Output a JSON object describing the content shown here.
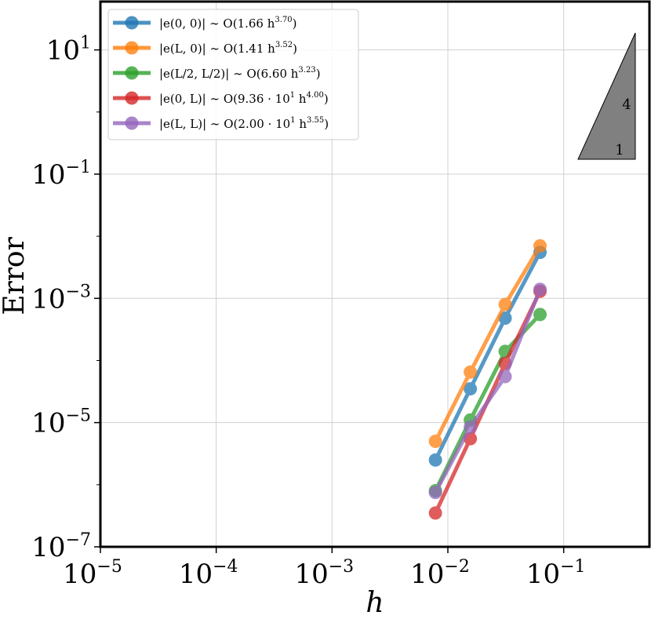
{
  "chart_data": {
    "type": "line",
    "scale": "log-log",
    "xlabel": "h",
    "ylabel": "Error",
    "xlim": [
      1e-05,
      0.55
    ],
    "ylim": [
      1e-07,
      60
    ],
    "x_ticks": [
      {
        "value": 1e-05,
        "base": "10",
        "exp": "−5"
      },
      {
        "value": 0.0001,
        "base": "10",
        "exp": "−4"
      },
      {
        "value": 0.001,
        "base": "10",
        "exp": "−3"
      },
      {
        "value": 0.01,
        "base": "10",
        "exp": "−2"
      },
      {
        "value": 0.1,
        "base": "10",
        "exp": "−1"
      }
    ],
    "y_ticks": [
      {
        "value": 1e-07,
        "base": "10",
        "exp": "−7"
      },
      {
        "value": 1e-05,
        "base": "10",
        "exp": "−5"
      },
      {
        "value": 0.001,
        "base": "10",
        "exp": "−3"
      },
      {
        "value": 0.1,
        "base": "10",
        "exp": "−1"
      },
      {
        "value": 10,
        "base": "10",
        "exp": "1"
      }
    ],
    "grid": true,
    "legend_position": "top-left",
    "series": [
      {
        "name": "|e(0,0)| ∼ O(1.66 h^3.70)",
        "legend_main": "|e(0, 0)| ∼ O(1.66 h",
        "legend_exp": "3.70",
        "legend_tail": ")",
        "color": "#1f77b4",
        "x": [
          0.0078125,
          0.015625,
          0.03125,
          0.0625
        ],
        "y": [
          2.5e-06,
          3.5e-05,
          0.00048,
          0.0055
        ]
      },
      {
        "name": "|e(L,0)| ∼ O(1.41 h^3.52)",
        "legend_main": "|e(L, 0)| ∼ O(1.41 h",
        "legend_exp": "3.52",
        "legend_tail": ")",
        "color": "#ff7f0e",
        "x": [
          0.0078125,
          0.015625,
          0.03125,
          0.0625
        ],
        "y": [
          5e-06,
          6.5e-05,
          0.0008,
          0.007
        ]
      },
      {
        "name": "|e(L/2,L/2)| ∼ O(6.60 h^3.23)",
        "legend_main": "|e(L/2, L/2)| ∼ O(6.60 h",
        "legend_exp": "3.23",
        "legend_tail": ")",
        "color": "#2ca02c",
        "x": [
          0.0078125,
          0.015625,
          0.03125,
          0.0625
        ],
        "y": [
          8e-07,
          1.1e-05,
          0.00014,
          0.00055
        ]
      },
      {
        "name": "|e(0,L)| ∼ O(9.36·10^1 h^4.00)",
        "legend_main": "|e(0, L)| ∼ O(9.36 · 10",
        "legend_exp1": "1",
        "legend_mid": " h",
        "legend_exp": "4.00",
        "legend_tail": ")",
        "color": "#d62728",
        "x": [
          0.0078125,
          0.015625,
          0.03125,
          0.0625
        ],
        "y": [
          3.5e-07,
          5.5e-06,
          9e-05,
          0.0013
        ]
      },
      {
        "name": "|e(L,L)| ∼ O(2.00·10^1 h^3.55)",
        "legend_main": "|e(L, L)| ∼ O(2.00 · 10",
        "legend_exp1": "1",
        "legend_mid": " h",
        "legend_exp": "3.55",
        "legend_tail": ")",
        "color": "#9467bd",
        "x": [
          0.0078125,
          0.015625,
          0.03125,
          0.0625
        ],
        "y": [
          7.5e-07,
          8.5e-06,
          5.5e-05,
          0.0014
        ]
      }
    ],
    "slope_triangle": {
      "rise_label": "4",
      "run_label": "1",
      "color": "#808080"
    }
  }
}
